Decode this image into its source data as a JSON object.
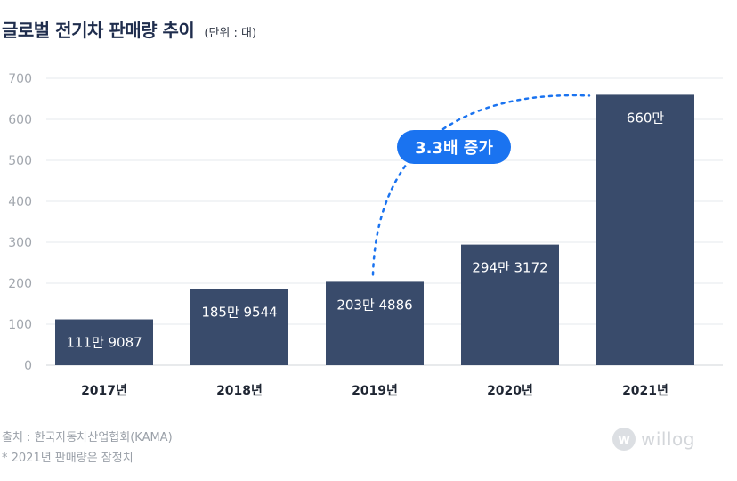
{
  "header": {
    "title": "글로벌 전기차 판매량 추이",
    "unit": "(단위 : 대)"
  },
  "chart_data": {
    "type": "bar",
    "categories": [
      "2017년",
      "2018년",
      "2019년",
      "2020년",
      "2021년"
    ],
    "values": [
      1119087,
      1859544,
      2034886,
      2943172,
      6600000
    ],
    "value_labels": [
      "111만 9087",
      "185만 9544",
      "203만 4886",
      "294만 3172",
      "660만"
    ],
    "y_ticks": [
      "0",
      "100",
      "200",
      "300",
      "400",
      "500",
      "600",
      "700"
    ],
    "ylim": [
      0,
      7000000
    ],
    "grid": true,
    "annotation": "3.3배 증가",
    "bar_color": "#394b6b",
    "annotation_color": "#1a73f0"
  },
  "footer": {
    "source": "출처 : 한국자동차산업협회(KAMA)",
    "note": "* 2021년 판매량은 잠정치"
  },
  "brand": {
    "mark": "w",
    "name": "willog",
    "icon": "willog-logo-icon"
  }
}
